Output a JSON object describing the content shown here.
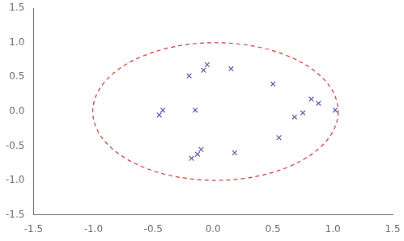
{
  "chart_data": {
    "type": "scatter",
    "x": [
      -0.05,
      -0.08,
      -0.2,
      0.15,
      0.5,
      0.82,
      0.88,
      0.75,
      0.68,
      1.02,
      -0.42,
      -0.45,
      -0.15,
      0.55,
      -0.1,
      -0.13,
      -0.18,
      0.18
    ],
    "values": [
      0.68,
      0.6,
      0.52,
      0.62,
      0.4,
      0.18,
      0.12,
      -0.02,
      -0.08,
      0.02,
      0.02,
      -0.05,
      0.02,
      -0.38,
      -0.55,
      -0.62,
      -0.68,
      -0.6
    ],
    "color": "#5555aa",
    "marker": "x",
    "ellipse": {
      "center_x": 0.02,
      "center_y": 0.0,
      "width": 2.05,
      "height": 2.0,
      "color": "#cc3333",
      "line_style": "dashed"
    },
    "xlim": [
      -1.5,
      1.5
    ],
    "ylim": [
      -1.5,
      1.5
    ],
    "xticks": [
      -1.5,
      {
        "value": -1.0,
        "label": "-1.0"
      },
      -0.5,
      {
        "value": 0.0,
        "label": "0.0"
      },
      0.5,
      {
        "value": 1.0,
        "label": "1.0"
      },
      1.5
    ],
    "yticks": [
      -1.5,
      {
        "value": -1.0,
        "label": "-1.0"
      },
      -0.5,
      {
        "value": 0.0,
        "label": "0.0"
      },
      0.5,
      {
        "value": 1.0,
        "label": "1.0"
      },
      1.5
    ],
    "grid": false
  }
}
